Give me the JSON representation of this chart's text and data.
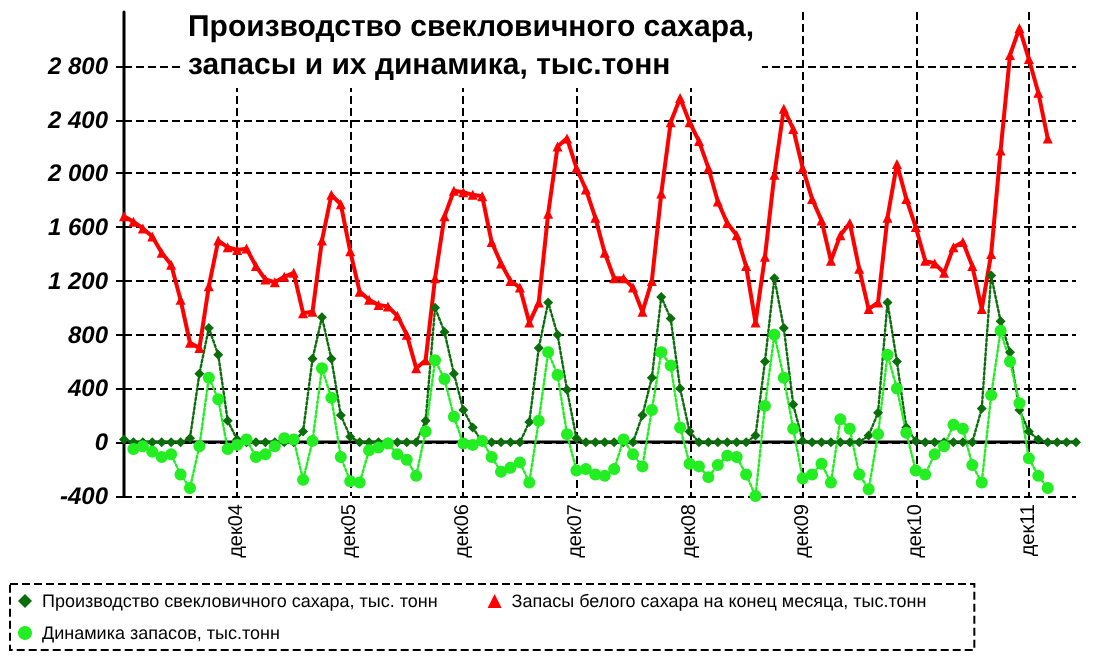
{
  "chart_data": {
    "type": "line",
    "title": "Производство свекловичного сахара,\nзапасы и их динамика, тыс.тонн",
    "categories": [
      null,
      null,
      null,
      null,
      null,
      null,
      null,
      null,
      null,
      null,
      null,
      null,
      "дек04",
      null,
      null,
      null,
      null,
      null,
      null,
      null,
      null,
      null,
      null,
      null,
      "дек05",
      null,
      null,
      null,
      null,
      null,
      null,
      null,
      null,
      null,
      null,
      null,
      "дек06",
      null,
      null,
      null,
      null,
      null,
      null,
      null,
      null,
      null,
      null,
      null,
      "дек07",
      null,
      null,
      null,
      null,
      null,
      null,
      null,
      null,
      null,
      null,
      null,
      "дек08",
      null,
      null,
      null,
      null,
      null,
      null,
      null,
      null,
      null,
      null,
      null,
      "дек09",
      null,
      null,
      null,
      null,
      null,
      null,
      null,
      null,
      null,
      null,
      null,
      "дек10",
      null,
      null,
      null,
      null,
      null,
      null,
      null,
      null,
      null,
      null,
      null,
      "дек11",
      null,
      null,
      null,
      null,
      null
    ],
    "series": [
      {
        "name": "Производство свекловичного сахара, тыс. тонн",
        "color": "#0a6e0a",
        "marker": "diamond",
        "line_style": "dotted",
        "values": [
          20,
          0,
          0,
          0,
          0,
          0,
          0,
          30,
          510,
          850,
          650,
          160,
          20,
          0,
          0,
          0,
          0,
          0,
          0,
          80,
          620,
          930,
          620,
          200,
          40,
          0,
          0,
          0,
          0,
          0,
          0,
          0,
          160,
          1000,
          820,
          510,
          240,
          110,
          0,
          0,
          0,
          0,
          0,
          150,
          700,
          1040,
          800,
          390,
          30,
          0,
          0,
          0,
          0,
          0,
          0,
          200,
          480,
          1080,
          920,
          400,
          80,
          0,
          0,
          0,
          0,
          0,
          0,
          50,
          600,
          1220,
          850,
          280,
          10,
          0,
          0,
          0,
          0,
          0,
          0,
          50,
          220,
          1040,
          600,
          110,
          10,
          0,
          0,
          0,
          0,
          0,
          0,
          250,
          1240,
          900,
          670,
          240,
          80,
          20,
          0,
          0,
          0,
          0
        ]
      },
      {
        "name": "Запасы белого сахара на конец месяца, тыс.тонн",
        "color": "#ff0000",
        "marker": "triangle",
        "line_style": "solid",
        "values": [
          1680,
          1640,
          1590,
          1530,
          1410,
          1320,
          1060,
          740,
          700,
          1160,
          1500,
          1450,
          1430,
          1440,
          1310,
          1210,
          1190,
          1230,
          1260,
          960,
          970,
          1500,
          1840,
          1770,
          1420,
          1120,
          1060,
          1020,
          1010,
          940,
          800,
          550,
          610,
          1220,
          1680,
          1870,
          1860,
          1840,
          1830,
          1490,
          1330,
          1200,
          1150,
          890,
          1040,
          1700,
          2200,
          2260,
          2040,
          1880,
          1670,
          1410,
          1220,
          1220,
          1150,
          970,
          1200,
          1850,
          2380,
          2560,
          2380,
          2240,
          2040,
          1790,
          1630,
          1540,
          1310,
          890,
          1380,
          1990,
          2480,
          2330,
          2040,
          1810,
          1650,
          1350,
          1540,
          1630,
          1290,
          990,
          1040,
          1670,
          2070,
          1810,
          1600,
          1350,
          1330,
          1260,
          1450,
          1490,
          1310,
          990,
          1400,
          2170,
          2880,
          3080,
          2850,
          2600,
          2260,
          null,
          null,
          null
        ]
      },
      {
        "name": "Динамика запасов, тыс.тонн",
        "color": "#22ee22",
        "marker": "circle",
        "line_style": "dotted",
        "values": [
          null,
          -50,
          -30,
          -70,
          -110,
          -90,
          -240,
          -340,
          -30,
          480,
          320,
          -50,
          -20,
          20,
          -110,
          -90,
          -30,
          30,
          20,
          -280,
          10,
          550,
          330,
          -110,
          -290,
          -300,
          -60,
          -40,
          -10,
          -90,
          -130,
          -250,
          80,
          610,
          470,
          190,
          -10,
          -20,
          10,
          -110,
          -220,
          -190,
          -150,
          -300,
          160,
          670,
          500,
          60,
          -210,
          -200,
          -240,
          -250,
          -200,
          20,
          -90,
          -180,
          240,
          670,
          570,
          110,
          -160,
          -180,
          -260,
          -170,
          -100,
          -110,
          -240,
          -400,
          270,
          800,
          480,
          100,
          -270,
          -240,
          -160,
          -300,
          170,
          100,
          -240,
          -350,
          60,
          650,
          400,
          70,
          -210,
          -240,
          -90,
          -30,
          130,
          100,
          -170,
          -300,
          350,
          830,
          600,
          290,
          -120,
          -250,
          -340,
          null,
          null,
          null
        ]
      }
    ],
    "ylim": [
      -400,
      3200
    ],
    "yticks": [
      -400,
      0,
      400,
      800,
      {
        "value": 1200,
        "label": "1 200"
      },
      {
        "value": 1600,
        "label": "1 600"
      },
      {
        "value": 2000,
        "label": "2 000"
      },
      {
        "value": 2400,
        "label": "2 400"
      },
      {
        "value": 2800,
        "label": "2 800"
      }
    ],
    "grid": true,
    "legend": "bottom"
  }
}
